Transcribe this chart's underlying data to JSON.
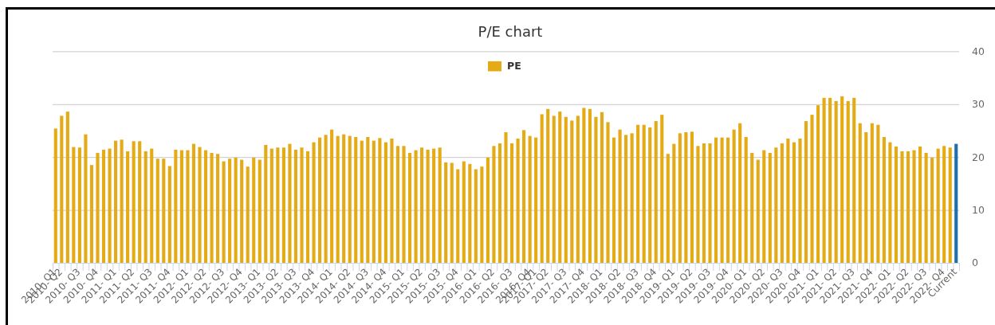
{
  "chart_data": {
    "type": "bar",
    "title": "P/E chart",
    "categories": [
      "2010- Q1",
      "2010- Q2",
      null,
      null,
      "2010- Q3",
      null,
      null,
      "2010- Q4",
      null,
      null,
      "2011- Q1",
      null,
      null,
      "2011- Q2",
      null,
      null,
      "2011- Q3",
      null,
      null,
      "2011- Q4",
      null,
      null,
      "2012- Q1",
      null,
      null,
      "2012- Q2",
      null,
      null,
      "2012- Q3",
      null,
      null,
      "2012- Q4",
      null,
      null,
      "2013- Q1",
      null,
      null,
      "2013- Q2",
      null,
      null,
      "2013- Q3",
      null,
      null,
      "2013- Q4",
      null,
      null,
      "2014- Q1",
      null,
      null,
      "2014- Q2",
      null,
      null,
      "2014- Q3",
      null,
      null,
      "2014- Q4",
      null,
      null,
      "2015- Q1",
      null,
      null,
      "2015- Q2",
      null,
      null,
      "2015- Q3",
      null,
      null,
      "2015- Q4",
      null,
      null,
      "2016- Q1",
      null,
      null,
      "2016- Q2",
      null,
      null,
      "2016- Q3",
      null,
      null,
      "2016- Q4",
      "2017- Q1",
      null,
      "2017- Q2",
      null,
      null,
      "2017- Q3",
      null,
      null,
      "2017- Q4",
      null,
      null,
      "2018- Q1",
      null,
      null,
      "2018- Q2",
      null,
      null,
      "2018- Q3",
      null,
      null,
      "2018- Q4",
      null,
      null,
      "2019- Q1",
      null,
      null,
      "2019- Q2",
      null,
      null,
      "2019- Q3",
      null,
      null,
      "2019- Q4",
      null,
      null,
      "2020- Q1",
      null,
      null,
      "2020- Q2",
      null,
      null,
      "2020- Q3",
      null,
      null,
      "2020- Q4",
      null,
      null,
      "2021- Q1",
      null,
      null,
      "2021- Q2",
      null,
      null,
      "2021- Q3",
      null,
      null,
      "2021- Q4",
      null,
      null,
      "2022- Q1",
      null,
      null,
      "2022- Q2",
      null,
      null,
      "2022- Q3",
      null,
      null,
      "2022- Q4",
      null,
      "Current"
    ],
    "series": [
      {
        "name": "PE",
        "color": "#e5ab17",
        "colors": [
          "#e5ab17",
          "#e5ab17",
          "#e5ab17",
          "#e5ab17",
          "#e5ab17",
          "#e5ab17",
          "#e5ab17",
          "#e5ab17",
          "#e5ab17",
          "#e5ab17",
          "#e5ab17",
          "#e5ab17",
          "#e5ab17",
          "#e5ab17",
          "#e5ab17",
          "#e5ab17",
          "#e5ab17",
          "#e5ab17",
          "#e5ab17",
          "#e5ab17",
          "#e5ab17",
          "#e5ab17",
          "#e5ab17",
          "#e5ab17",
          "#e5ab17",
          "#e5ab17",
          "#e5ab17",
          "#e5ab17",
          "#e5ab17",
          "#e5ab17",
          "#e5ab17",
          "#e5ab17",
          "#e5ab17",
          "#e5ab17",
          "#e5ab17",
          "#e5ab17",
          "#e5ab17",
          "#e5ab17",
          "#e5ab17",
          "#e5ab17",
          "#e5ab17",
          "#e5ab17",
          "#e5ab17",
          "#e5ab17",
          "#e5ab17",
          "#e5ab17",
          "#e5ab17",
          "#e5ab17",
          "#e5ab17",
          "#e5ab17",
          "#e5ab17",
          "#e5ab17",
          "#e5ab17",
          "#e5ab17",
          "#e5ab17",
          "#e5ab17",
          "#e5ab17",
          "#e5ab17",
          "#e5ab17",
          "#e5ab17",
          "#e5ab17",
          "#e5ab17",
          "#e5ab17",
          "#e5ab17",
          "#e5ab17",
          "#e5ab17",
          "#e5ab17",
          "#e5ab17",
          "#e5ab17",
          "#e5ab17",
          "#e5ab17",
          "#e5ab17",
          "#e5ab17",
          "#e5ab17",
          "#e5ab17",
          "#e5ab17",
          "#e5ab17",
          "#e5ab17",
          "#e5ab17",
          "#e5ab17",
          "#e5ab17",
          "#e5ab17",
          "#e5ab17",
          "#e5ab17",
          "#e5ab17",
          "#e5ab17",
          "#e5ab17",
          "#e5ab17",
          "#e5ab17",
          "#e5ab17",
          "#e5ab17",
          "#e5ab17",
          "#e5ab17",
          "#e5ab17",
          "#e5ab17",
          "#e5ab17",
          "#e5ab17",
          "#e5ab17",
          "#e5ab17",
          "#e5ab17",
          "#e5ab17",
          "#e5ab17",
          "#e5ab17",
          "#e5ab17",
          "#e5ab17",
          "#e5ab17",
          "#e5ab17",
          "#e5ab17",
          "#e5ab17",
          "#e5ab17",
          "#e5ab17",
          "#e5ab17",
          "#e5ab17",
          "#e5ab17",
          "#e5ab17",
          "#e5ab17",
          "#e5ab17",
          "#e5ab17",
          "#e5ab17",
          "#e5ab17",
          "#e5ab17",
          "#e5ab17",
          "#e5ab17",
          "#e5ab17",
          "#e5ab17",
          "#e5ab17",
          "#e5ab17",
          "#e5ab17",
          "#e5ab17",
          "#e5ab17",
          "#e5ab17",
          "#e5ab17",
          "#e5ab17",
          "#e5ab17",
          "#e5ab17",
          "#e5ab17",
          "#e5ab17",
          "#e5ab17",
          "#e5ab17",
          "#e5ab17",
          "#e5ab17",
          "#e5ab17",
          "#e5ab17",
          "#e5ab17",
          "#e5ab17",
          "#e5ab17",
          "#e5ab17",
          "#e5ab17",
          "#e5ab17",
          "#e5ab17",
          "#1d6fae"
        ],
        "values": [
          25.4,
          27.8,
          28.6,
          21.9,
          21.8,
          24.3,
          18.5,
          20.8,
          21.4,
          21.6,
          23.1,
          23.3,
          21.1,
          23.0,
          23.0,
          21.1,
          21.6,
          19.7,
          19.7,
          18.3,
          21.4,
          21.3,
          21.3,
          22.5,
          21.9,
          21.3,
          20.8,
          20.6,
          19.2,
          19.7,
          19.9,
          19.5,
          18.2,
          19.9,
          19.5,
          22.3,
          21.6,
          21.8,
          21.8,
          22.5,
          21.4,
          21.8,
          21.1,
          22.8,
          23.7,
          24.2,
          25.2,
          24.0,
          24.3,
          24.0,
          23.8,
          23.1,
          23.8,
          23.1,
          23.6,
          22.8,
          23.5,
          22.1,
          22.1,
          20.8,
          21.3,
          21.8,
          21.4,
          21.6,
          21.8,
          19.0,
          18.9,
          17.7,
          19.2,
          18.7,
          17.7,
          18.2,
          19.9,
          22.1,
          22.6,
          24.7,
          22.6,
          23.5,
          25.1,
          24.0,
          23.7,
          28.1,
          29.1,
          27.8,
          28.6,
          27.6,
          26.9,
          27.8,
          29.3,
          29.1,
          27.6,
          28.5,
          26.6,
          23.7,
          25.2,
          24.2,
          24.5,
          26.1,
          26.1,
          25.6,
          26.8,
          28.0,
          20.6,
          22.5,
          24.5,
          24.7,
          24.8,
          22.1,
          22.6,
          22.6,
          23.7,
          23.7,
          23.7,
          25.2,
          26.4,
          23.8,
          20.8,
          19.5,
          21.3,
          20.8,
          21.8,
          22.6,
          23.5,
          22.8,
          23.5,
          26.8,
          28.0,
          29.8,
          31.2,
          31.2,
          30.6,
          31.5,
          30.6,
          31.2,
          26.4,
          24.7,
          26.4,
          26.1,
          23.8,
          22.8,
          22.0,
          21.1,
          21.1,
          21.3,
          22.0,
          20.8,
          19.9,
          21.6,
          22.1,
          21.8,
          22.5
        ]
      }
    ],
    "ylim": [
      0,
      40
    ],
    "yticks": [
      0,
      10,
      20,
      30,
      40
    ],
    "grid": "y",
    "legend": "top"
  }
}
